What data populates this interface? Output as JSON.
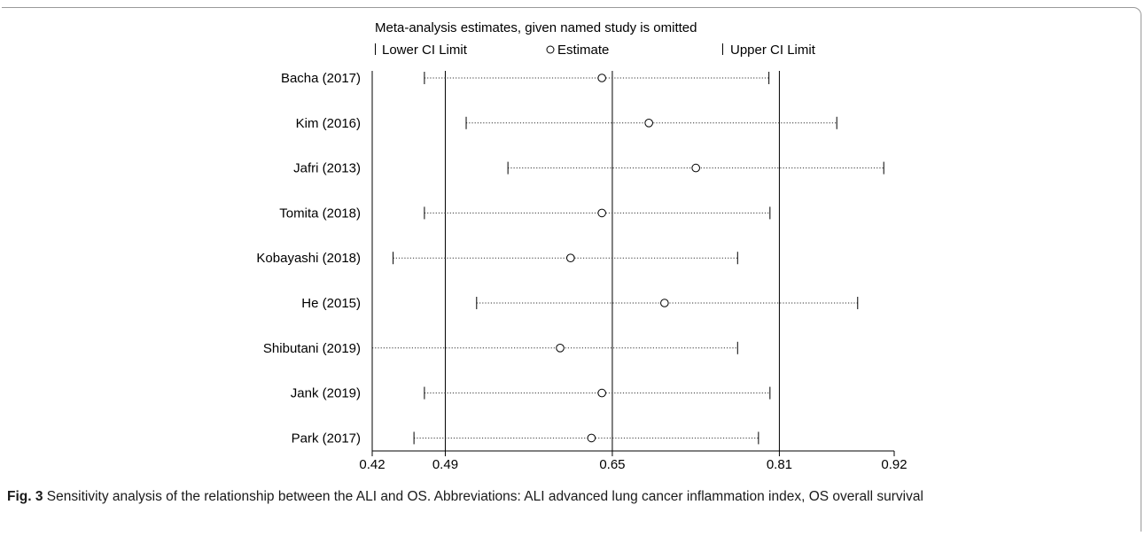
{
  "chart_data": {
    "type": "scatter",
    "title": "Meta-analysis estimates, given named study is omitted",
    "legend": {
      "lower": "Lower CI Limit",
      "estimate": "Estimate",
      "upper": "Upper CI Limit",
      "placement": "top"
    },
    "studies": [
      {
        "name": "Bacha (2017)",
        "lower": 0.47,
        "estimate": 0.64,
        "upper": 0.8
      },
      {
        "name": "Kim (2016)",
        "lower": 0.51,
        "estimate": 0.685,
        "upper": 0.865
      },
      {
        "name": "Jafri (2013)",
        "lower": 0.55,
        "estimate": 0.73,
        "upper": 0.91
      },
      {
        "name": "Tomita (2018)",
        "lower": 0.47,
        "estimate": 0.64,
        "upper": 0.801
      },
      {
        "name": "Kobayashi (2018)",
        "lower": 0.44,
        "estimate": 0.61,
        "upper": 0.77
      },
      {
        "name": "He (2015)",
        "lower": 0.52,
        "estimate": 0.7,
        "upper": 0.885
      },
      {
        "name": "Shibutani (2019)",
        "lower": 0.42,
        "estimate": 0.6,
        "upper": 0.77
      },
      {
        "name": "Jank (2019)",
        "lower": 0.47,
        "estimate": 0.64,
        "upper": 0.801
      },
      {
        "name": "Park (2017)",
        "lower": 0.46,
        "estimate": 0.63,
        "upper": 0.79
      }
    ],
    "x_ticks": [
      0.42,
      0.49,
      0.65,
      0.81,
      0.92
    ],
    "reference_lines": [
      0.49,
      0.65,
      0.81
    ],
    "xlim": [
      0.42,
      0.92
    ]
  },
  "caption": {
    "label": "Fig. 3",
    "text": " Sensitivity analysis of the relationship between the ALI and OS. Abbreviations: ALI advanced lung cancer inflammation index, OS overall survival"
  }
}
